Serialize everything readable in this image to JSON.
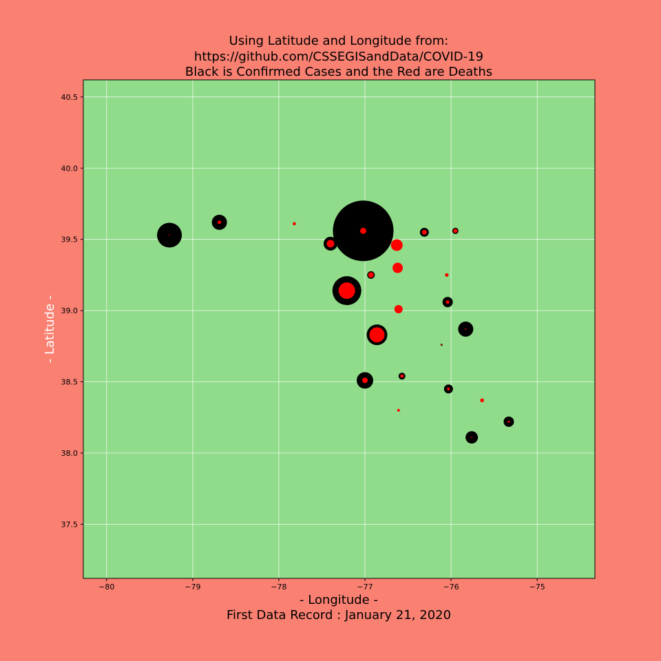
{
  "chart_data": {
    "type": "scatter",
    "title_lines": [
      "Using Latitude and Longitude from:",
      "https://github.com/CSSEGISandData/COVID-19",
      "Black is Confirmed Cases and the Red are Deaths"
    ],
    "xlabel": "- Longitude -",
    "xlabel_sub": "First Data Record : January 21, 2020",
    "ylabel": "- Latitude -",
    "xlim": [
      -80.27,
      -74.33
    ],
    "ylim": [
      37.12,
      40.62
    ],
    "x_ticks": [
      -80,
      -79,
      -78,
      -77,
      -76,
      -75
    ],
    "x_tick_labels": [
      "−80",
      "−79",
      "−78",
      "−77",
      "−76",
      "−75"
    ],
    "y_ticks": [
      37.5,
      38.0,
      38.5,
      39.0,
      39.5,
      40.0,
      40.5
    ],
    "y_tick_labels": [
      "37.5",
      "38.0",
      "38.5",
      "39.0",
      "39.5",
      "40.0",
      "40.5"
    ],
    "grid": true,
    "colors": {
      "figure_bg": "#fa8072",
      "plot_bg": "#90dc8a",
      "grid": "#ffffff",
      "confirmed": "#000000",
      "deaths": "#ff0000",
      "xlabel": "#000000",
      "ylabel": "#ffffff"
    },
    "series": [
      {
        "points": [
          {
            "x": -79.27,
            "y": 39.53,
            "size": 18
          },
          {
            "x": -78.69,
            "y": 39.62,
            "size": 11
          },
          {
            "x": -77.82,
            "y": 39.61,
            "size": 2.2
          },
          {
            "x": -77.4,
            "y": 39.47,
            "size": 10
          },
          {
            "x": -77.02,
            "y": 39.56,
            "size": 44
          },
          {
            "x": -76.31,
            "y": 39.55,
            "size": 6.5
          },
          {
            "x": -75.95,
            "y": 39.56,
            "size": 4.5
          },
          {
            "x": -76.93,
            "y": 39.25,
            "size": 5.5
          },
          {
            "x": -76.05,
            "y": 39.25,
            "size": 2.5
          },
          {
            "x": -77.21,
            "y": 39.14,
            "size": 21
          },
          {
            "x": -76.04,
            "y": 39.06,
            "size": 7.5
          },
          {
            "x": -75.83,
            "y": 38.87,
            "size": 11
          },
          {
            "x": -76.86,
            "y": 38.83,
            "size": 15
          },
          {
            "x": -76.11,
            "y": 38.76,
            "size": 1.5
          },
          {
            "x": -77.0,
            "y": 38.51,
            "size": 12
          },
          {
            "x": -76.57,
            "y": 38.54,
            "size": 5
          },
          {
            "x": -76.03,
            "y": 38.45,
            "size": 6.5
          },
          {
            "x": -75.76,
            "y": 38.11,
            "size": 9
          },
          {
            "x": -75.33,
            "y": 38.22,
            "size": 7.5
          }
        ]
      },
      {
        "points": [
          {
            "x": -79.27,
            "y": 39.53,
            "size": 0.8
          },
          {
            "x": -78.69,
            "y": 39.62,
            "size": 2.5
          },
          {
            "x": -77.82,
            "y": 39.61,
            "size": 2.2
          },
          {
            "x": -77.4,
            "y": 39.47,
            "size": 5.5
          },
          {
            "x": -77.02,
            "y": 39.56,
            "size": 4.5
          },
          {
            "x": -76.63,
            "y": 39.46,
            "size": 8.5
          },
          {
            "x": -76.31,
            "y": 39.55,
            "size": 3.5
          },
          {
            "x": -75.95,
            "y": 39.56,
            "size": 3
          },
          {
            "x": -76.62,
            "y": 39.3,
            "size": 7.5
          },
          {
            "x": -76.93,
            "y": 39.25,
            "size": 4
          },
          {
            "x": -76.05,
            "y": 39.25,
            "size": 2.5
          },
          {
            "x": -77.21,
            "y": 39.14,
            "size": 12
          },
          {
            "x": -76.04,
            "y": 39.06,
            "size": 2.5
          },
          {
            "x": -76.61,
            "y": 39.01,
            "size": 6
          },
          {
            "x": -75.83,
            "y": 38.87,
            "size": 1
          },
          {
            "x": -76.86,
            "y": 38.83,
            "size": 11
          },
          {
            "x": -76.11,
            "y": 38.76,
            "size": 1
          },
          {
            "x": -77.0,
            "y": 38.51,
            "size": 4
          },
          {
            "x": -76.57,
            "y": 38.54,
            "size": 2.5
          },
          {
            "x": -76.03,
            "y": 38.45,
            "size": 2
          },
          {
            "x": -75.64,
            "y": 38.37,
            "size": 2.8
          },
          {
            "x": -76.61,
            "y": 38.3,
            "size": 2
          },
          {
            "x": -75.76,
            "y": 38.11,
            "size": 1
          },
          {
            "x": -75.33,
            "y": 38.22,
            "size": 1.5
          }
        ]
      }
    ]
  }
}
